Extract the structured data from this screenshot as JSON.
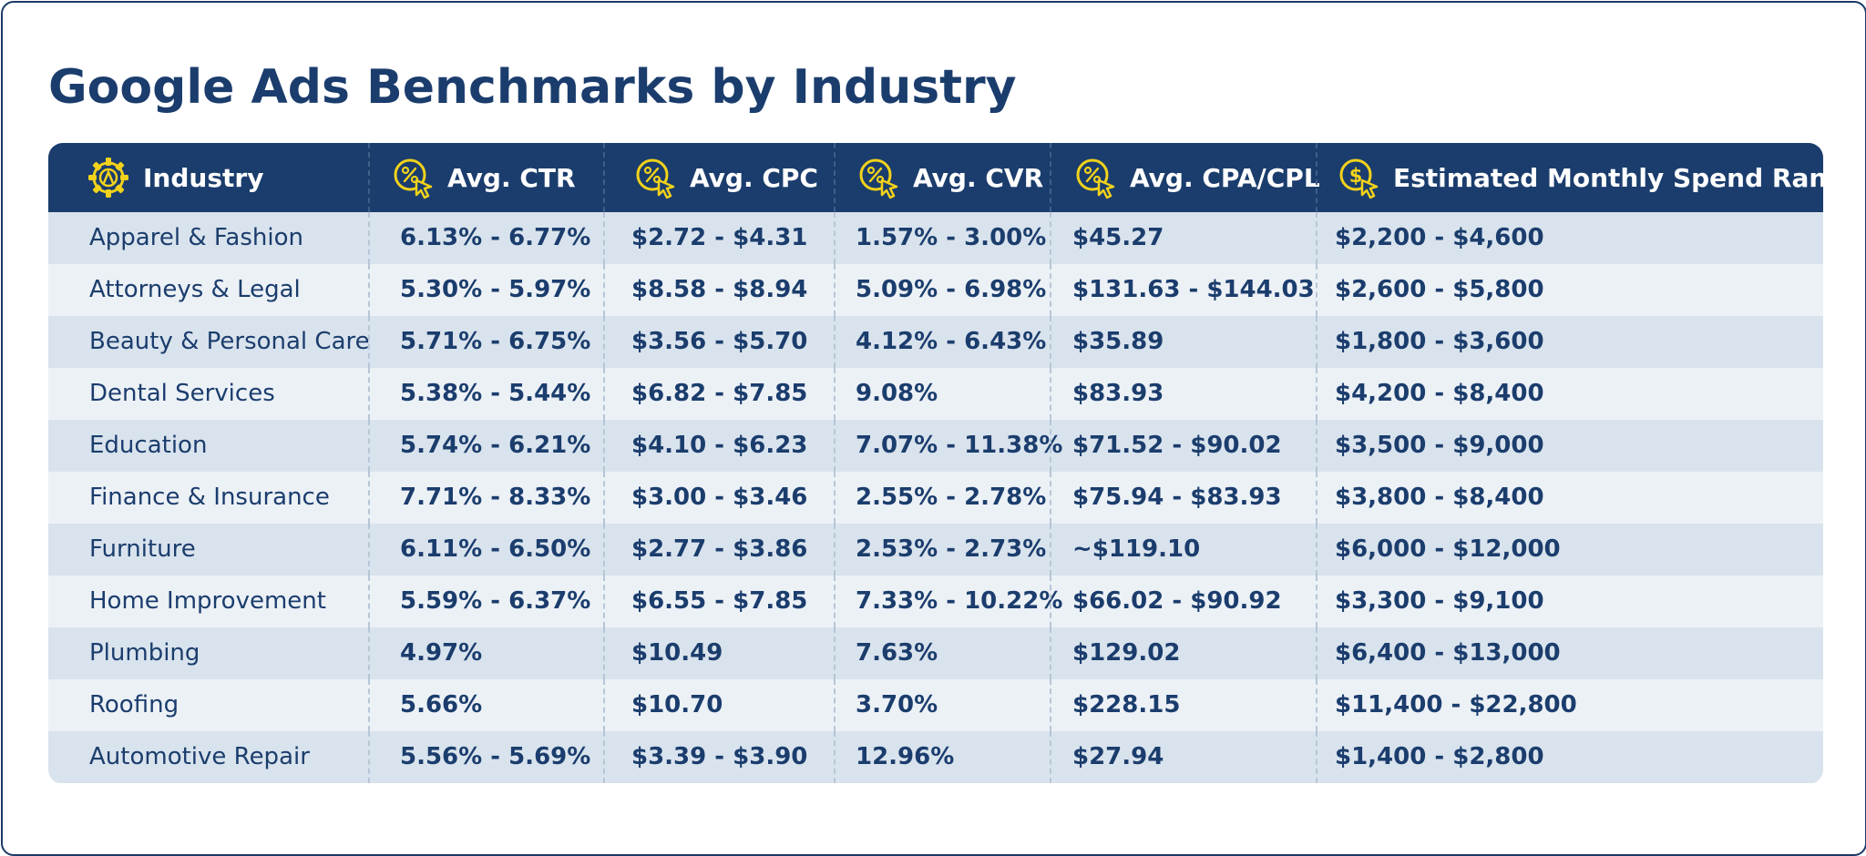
{
  "title": "Google Ads Benchmarks by Industry",
  "colors": {
    "primary": "#1b3d6d",
    "accent": "#f2d21b",
    "row_odd": "#d9e3ed",
    "row_even": "#ecf1f6"
  },
  "chart_data": {
    "type": "table",
    "title": "Google Ads Benchmarks by Industry",
    "columns": [
      {
        "label": "Industry",
        "icon": "gear-icon"
      },
      {
        "label": "Avg. CTR",
        "icon": "percent-click-icon"
      },
      {
        "label": "Avg. CPC",
        "icon": "percent-click-icon"
      },
      {
        "label": "Avg. CVR",
        "icon": "percent-click-icon"
      },
      {
        "label": "Avg. CPA/CPL",
        "icon": "percent-click-icon"
      },
      {
        "label": "Estimated Monthly Spend Range",
        "icon": "dollar-click-icon"
      }
    ],
    "rows": [
      [
        "Apparel & Fashion",
        "6.13% - 6.77%",
        "$2.72 - $4.31",
        "1.57% - 3.00%",
        "$45.27",
        "$2,200 - $4,600"
      ],
      [
        "Attorneys & Legal",
        "5.30% - 5.97%",
        "$8.58 - $8.94",
        "5.09% - 6.98%",
        "$131.63 - $144.03",
        "$2,600 - $5,800"
      ],
      [
        "Beauty & Personal Care",
        "5.71% - 6.75%",
        "$3.56 - $5.70",
        "4.12% - 6.43%",
        "$35.89",
        "$1,800 - $3,600"
      ],
      [
        "Dental Services",
        "5.38% - 5.44%",
        "$6.82 - $7.85",
        "9.08%",
        "$83.93",
        "$4,200 - $8,400"
      ],
      [
        "Education",
        "5.74% - 6.21%",
        "$4.10 - $6.23",
        "7.07% - 11.38%",
        "$71.52 - $90.02",
        "$3,500 - $9,000"
      ],
      [
        "Finance & Insurance",
        "7.71% - 8.33%",
        "$3.00 - $3.46",
        "2.55% - 2.78%",
        "$75.94 - $83.93",
        "$3,800 - $8,400"
      ],
      [
        "Furniture",
        "6.11% - 6.50%",
        "$2.77 - $3.86",
        "2.53% - 2.73%",
        "~$119.10",
        "$6,000 - $12,000"
      ],
      [
        "Home Improvement",
        "5.59% - 6.37%",
        "$6.55 - $7.85",
        "7.33% - 10.22%",
        "$66.02 - $90.92",
        "$3,300 - $9,100"
      ],
      [
        "Plumbing",
        "4.97%",
        "$10.49",
        "7.63%",
        "$129.02",
        "$6,400 - $13,000"
      ],
      [
        "Roofing",
        "5.66%",
        "$10.70",
        "3.70%",
        "$228.15",
        "$11,400 - $22,800"
      ],
      [
        "Automotive Repair",
        "5.56% - 5.69%",
        "$3.39 - $3.90",
        "12.96%",
        "$27.94",
        "$1,400 - $2,800"
      ]
    ]
  }
}
